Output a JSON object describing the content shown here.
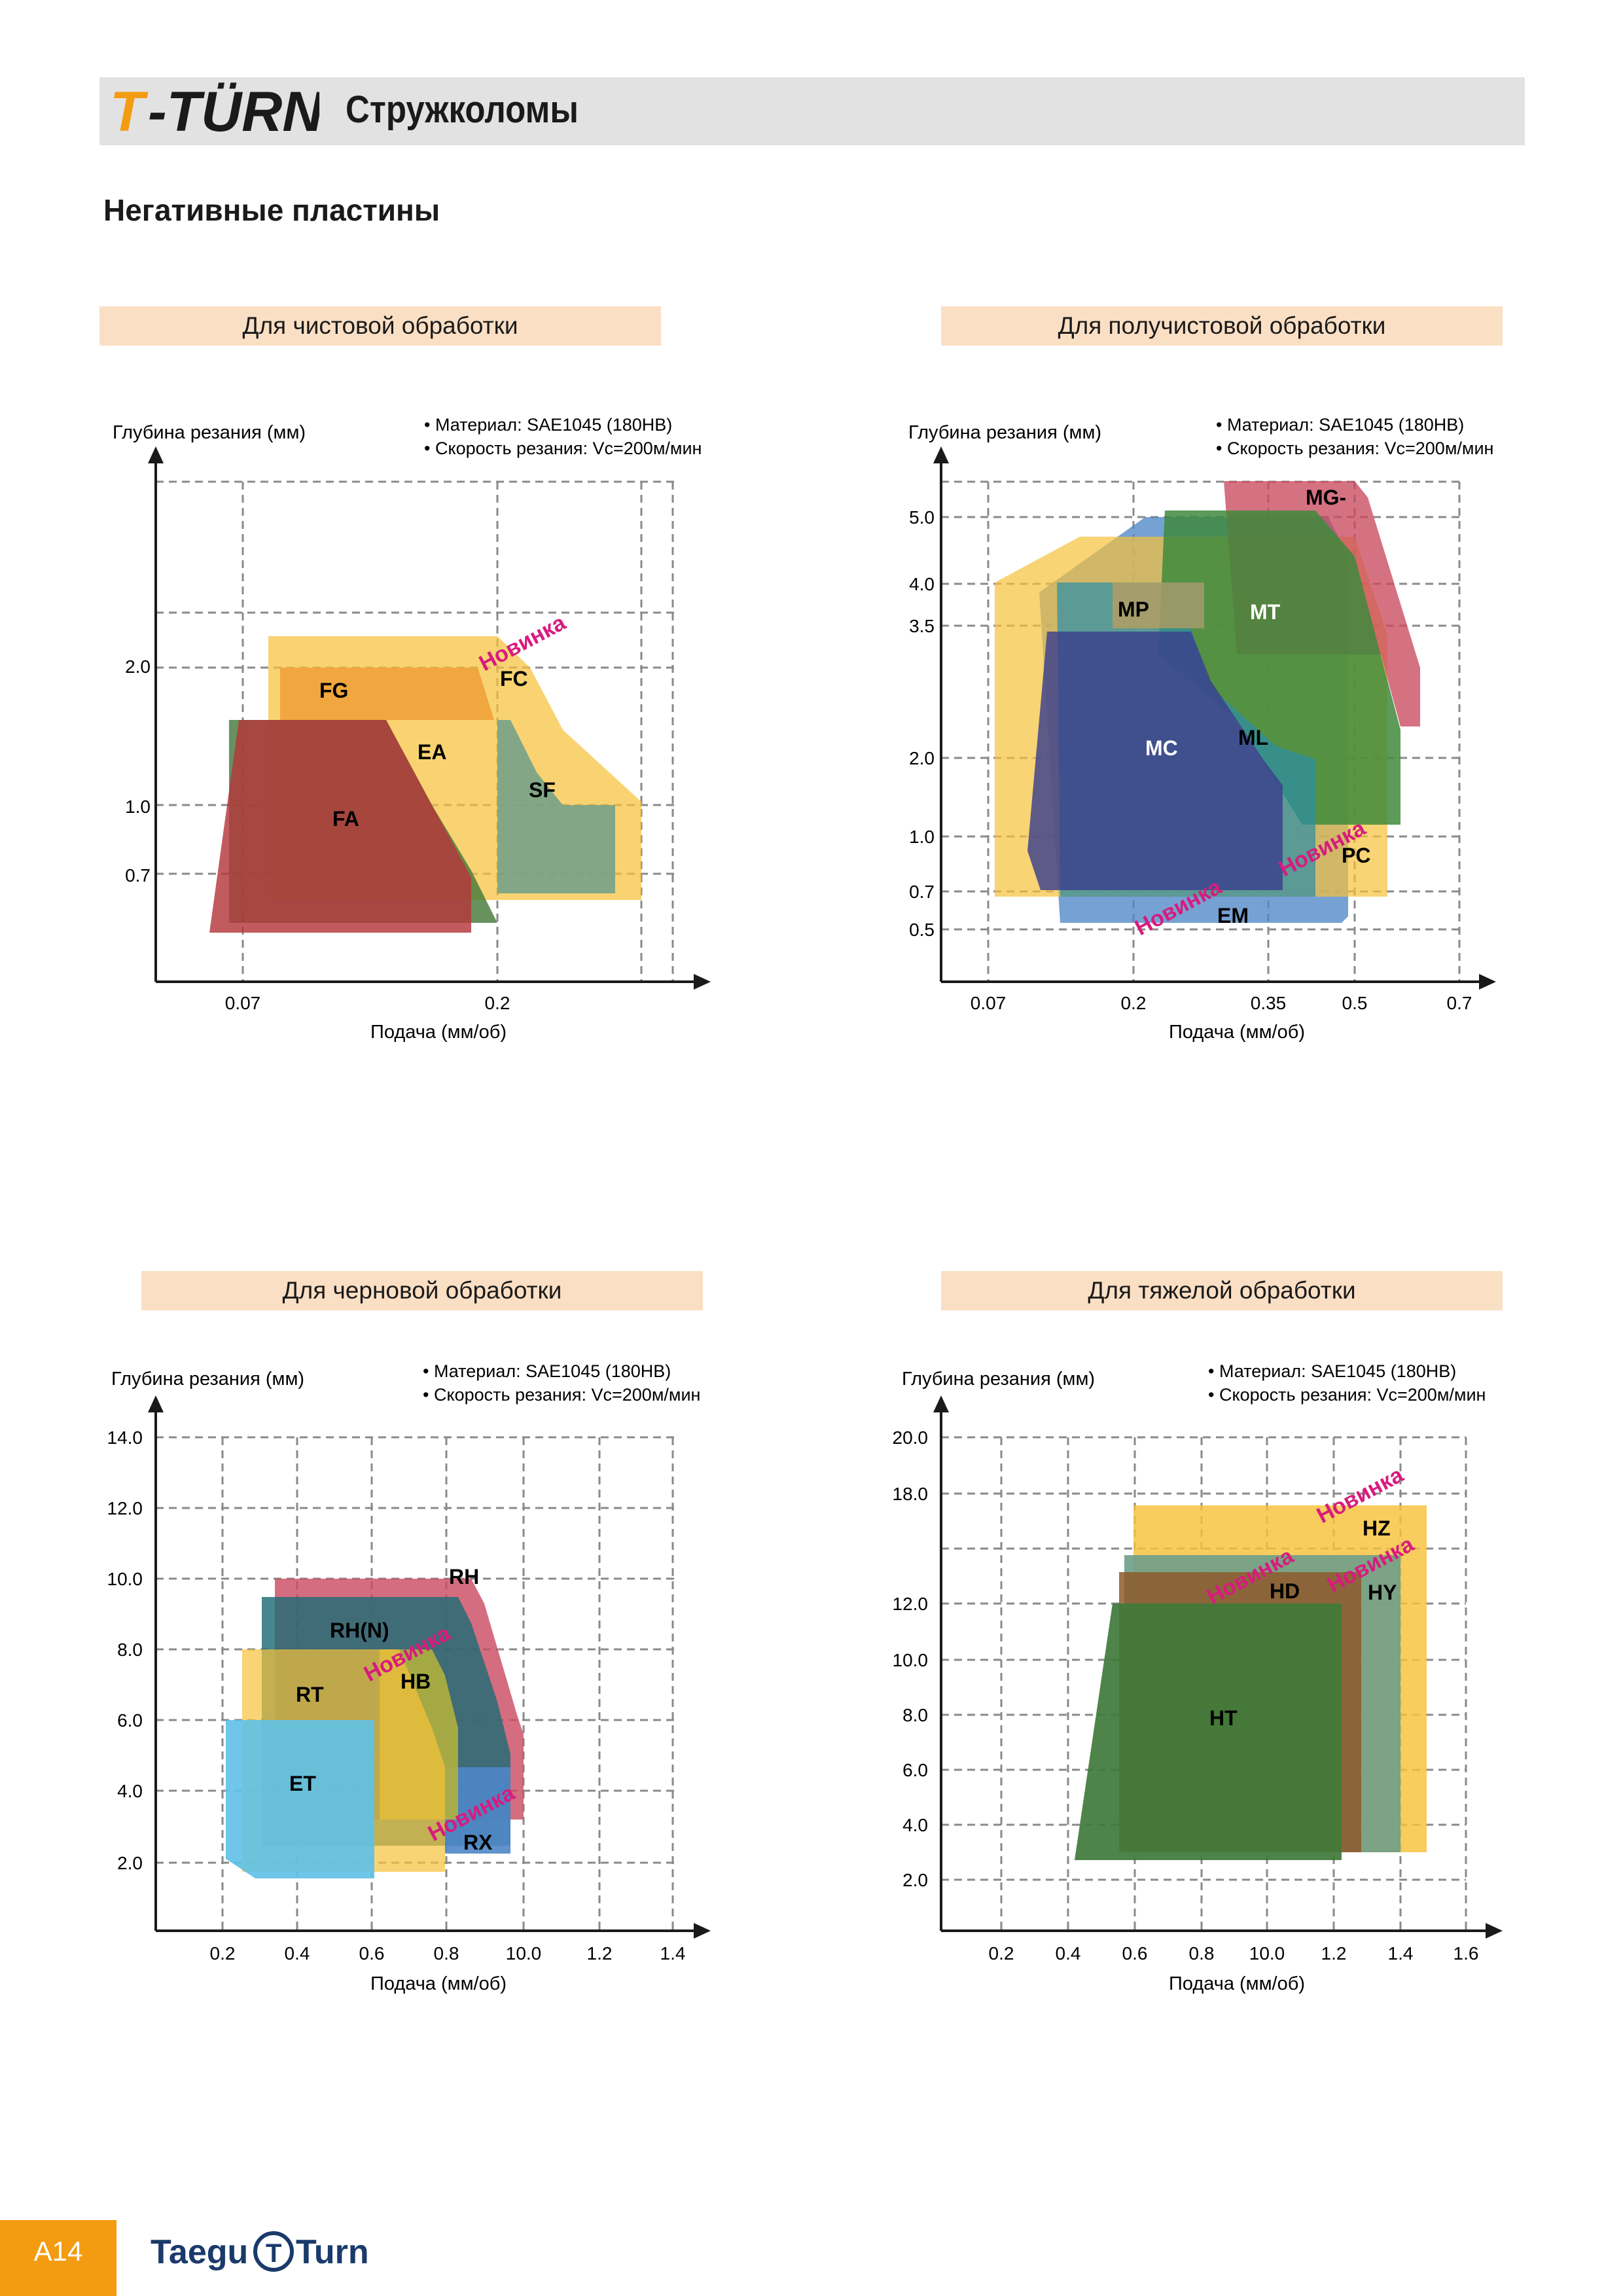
{
  "header": {
    "brand": "T-TURN",
    "title": "Стружколомы"
  },
  "section_title": "Негативные пластины",
  "new_label": "Новинка",
  "footer": {
    "page_number": "A14",
    "company": "Taegu Turn"
  },
  "charts_text": {
    "ylabel": "Глубина резания (мм)",
    "xlabel": "Подача (мм/об)",
    "note_material": "• Материал: SAE1045 (180HB)",
    "note_speed": "• Скорость резания: Vc=200м/мин"
  },
  "chart_data": [
    {
      "id": "finishing",
      "type": "area",
      "panel_title": "Для чистовой обработки",
      "xlabel": "Подача (мм/об)",
      "ylabel": "Глубина резания (мм)",
      "x_ticks": [
        "0.07",
        "0.2"
      ],
      "y_ticks": [
        "0.7",
        "1.0",
        "2.0"
      ],
      "series": [
        {
          "name": "FC",
          "color": "#f7c23a",
          "label_at": [
            0.2,
            2.0
          ],
          "new": true,
          "polygon": [
            [
              0.08,
              2.4
            ],
            [
              0.19,
              2.4
            ],
            [
              0.25,
              1.0
            ],
            [
              0.25,
              0.35
            ],
            [
              0.24,
              0.35
            ],
            [
              0.18,
              0.35
            ],
            [
              0.08,
              0.35
            ]
          ]
        },
        {
          "name": "SF",
          "color": "#6e9f8a",
          "label_at": [
            0.23,
            1.1
          ],
          "polygon": [
            [
              0.18,
              1.6
            ],
            [
              0.2,
              1.6
            ],
            [
              0.215,
              1.0
            ],
            [
              0.23,
              0.8
            ],
            [
              0.23,
              0.35
            ],
            [
              0.18,
              0.35
            ]
          ]
        },
        {
          "name": "FG",
          "color": "#f0a23a",
          "label_at": [
            0.09,
            1.8
          ],
          "polygon": [
            [
              0.085,
              2.0
            ],
            [
              0.17,
              2.0
            ],
            [
              0.18,
              1.6
            ],
            [
              0.085,
              1.6
            ]
          ]
        },
        {
          "name": "EA",
          "color": "#467a3a",
          "label_at": [
            0.14,
            1.25
          ],
          "polygon": [
            [
              0.1,
              1.6
            ],
            [
              0.155,
              1.6
            ],
            [
              0.19,
              0.8
            ],
            [
              0.2,
              0.35
            ],
            [
              0.1,
              0.35
            ]
          ]
        },
        {
          "name": "FA",
          "color": "#b5373a",
          "label_at": [
            0.1,
            0.9
          ],
          "polygon": [
            [
              0.085,
              1.6
            ],
            [
              0.14,
              1.6
            ],
            [
              0.18,
              0.8
            ],
            [
              0.18,
              0.1
            ],
            [
              0.055,
              0.1
            ]
          ]
        }
      ]
    },
    {
      "id": "semi-finishing",
      "type": "area",
      "panel_title": "Для получистовой обработки",
      "xlabel": "Подача (мм/об)",
      "ylabel": "Глубина резания (мм)",
      "x_ticks": [
        "0.07",
        "0.2",
        "0.35",
        "0.5",
        "0.7"
      ],
      "y_ticks": [
        "0.5",
        "0.7",
        "1.0",
        "2.0",
        "3.5",
        "4.0",
        "5.0"
      ],
      "series": [
        {
          "name": "EM",
          "color": "#4f86c6",
          "label_at": [
            0.3,
            0.7
          ],
          "new": true
        },
        {
          "name": "PC",
          "color": "#f7c23a",
          "label_at": [
            0.5,
            1.2
          ],
          "new": true
        },
        {
          "name": "MG-",
          "color": "#c94a5f",
          "label_at": [
            0.5,
            5.4
          ]
        },
        {
          "name": "MT",
          "color": "#3f8a3c",
          "label_at": [
            0.35,
            3.7
          ]
        },
        {
          "name": "MP",
          "color": "#a09a6c",
          "label_at": [
            0.2,
            3.7
          ]
        },
        {
          "name": "ML",
          "color": "#2e8fa6",
          "label_at": [
            0.3,
            2.4
          ]
        },
        {
          "name": "MC",
          "color": "#3b3f8c",
          "label_at": [
            0.2,
            2.2
          ]
        }
      ]
    },
    {
      "id": "roughing",
      "type": "area",
      "panel_title": "Для черновой обработки",
      "xlabel": "Подача (мм/об)",
      "ylabel": "Глубина резания (мм)",
      "x_ticks": [
        "0.2",
        "0.4",
        "0.6",
        "0.8",
        "10.0",
        "1.2",
        "1.4"
      ],
      "y_ticks": [
        "2.0",
        "4.0",
        "6.0",
        "8.0",
        "10.0",
        "12.0",
        "14.0"
      ],
      "series": [
        {
          "name": "RH",
          "color": "#c9495f",
          "label_at": [
            0.85,
            10.0
          ]
        },
        {
          "name": "RH(N)",
          "color": "#1f6b75",
          "label_at": [
            0.55,
            8.5
          ]
        },
        {
          "name": "RX",
          "color": "#4f86c6",
          "label_at": [
            0.85,
            2.5
          ],
          "new": true
        },
        {
          "name": "HB",
          "color": "#b4b23c",
          "label_at": [
            0.75,
            7.0
          ],
          "new": true
        },
        {
          "name": "RT",
          "color": "#f7c23a",
          "label_at": [
            0.4,
            6.5
          ]
        },
        {
          "name": "ET",
          "color": "#5ec1e8",
          "label_at": [
            0.35,
            4.0
          ]
        }
      ]
    },
    {
      "id": "heavy",
      "type": "area",
      "panel_title": "Для тяжелой обработки",
      "xlabel": "Подача (мм/об)",
      "ylabel": "Глубина резания (мм)",
      "x_ticks": [
        "0.2",
        "0.4",
        "0.6",
        "0.8",
        "10.0",
        "1.2",
        "1.4",
        "1.6"
      ],
      "y_ticks": [
        "2.0",
        "4.0",
        "6.0",
        "8.0",
        "10.0",
        "12.0",
        "18.0",
        "20.0"
      ],
      "series": [
        {
          "name": "HZ",
          "color": "#f7c23a",
          "label_at": [
            1.35,
            15.0
          ],
          "new": true
        },
        {
          "name": "HY",
          "color": "#6e9f8a",
          "label_at": [
            1.35,
            12.5
          ],
          "new": true
        },
        {
          "name": "HD",
          "color": "#8e5b2c",
          "label_at": [
            0.9,
            12.5
          ],
          "new": true
        },
        {
          "name": "HT",
          "color": "#3f7a3a",
          "label_at": [
            0.9,
            8.0
          ]
        }
      ]
    }
  ]
}
